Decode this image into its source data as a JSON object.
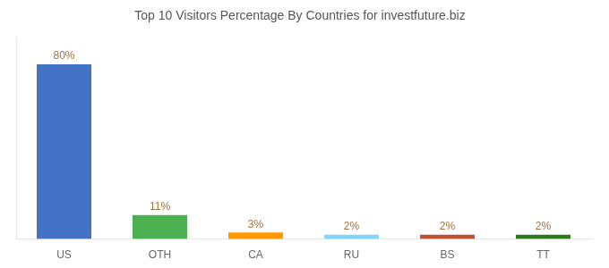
{
  "chart_data": {
    "type": "bar",
    "title": "Top 10 Visitors Percentage By Countries for investfuture.biz",
    "categories": [
      "US",
      "OTH",
      "CA",
      "RU",
      "BS",
      "TT"
    ],
    "values": [
      80,
      11,
      3,
      2,
      2,
      2
    ],
    "value_labels": [
      "80%",
      "11%",
      "3%",
      "2%",
      "2%",
      "2%"
    ],
    "colors": [
      "#4472c4",
      "#4caf50",
      "#ff9800",
      "#81d4fa",
      "#bf5030",
      "#2d7a1e"
    ],
    "ylim": [
      0,
      92
    ],
    "yticks": [],
    "grid": false,
    "data_labels": true,
    "tick_labels": "x"
  }
}
